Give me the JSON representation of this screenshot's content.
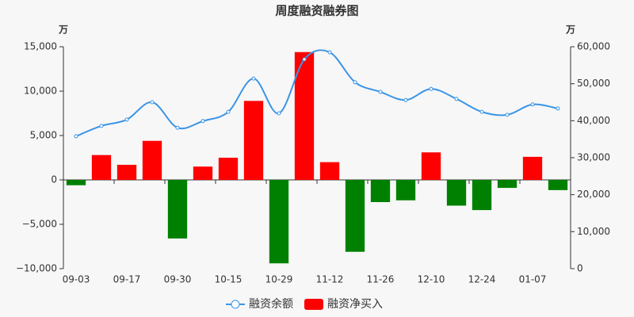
{
  "chart_data": {
    "type": "bar",
    "title": "周度融资融券图",
    "y_unit": "万",
    "y2_unit": "万",
    "categories": [
      "09-03",
      null,
      "09-17",
      null,
      "09-30",
      null,
      "10-15",
      null,
      "10-29",
      null,
      "11-12",
      null,
      "11-26",
      null,
      "12-10",
      null,
      "12-24",
      null,
      "01-07",
      null
    ],
    "series": [
      {
        "name": "融资余额",
        "type": "line",
        "axis": "y2",
        "color": "#3a95e6",
        "values": [
          35800,
          38600,
          40300,
          45000,
          38100,
          39900,
          42400,
          51400,
          42000,
          56600,
          58500,
          50400,
          47800,
          45600,
          48600,
          45900,
          42400,
          41600,
          44400,
          43300
        ]
      },
      {
        "name": "融资净买入",
        "type": "bar",
        "color": "#ff0000",
        "negative_color": "#008000",
        "values": [
          -600,
          2800,
          1700,
          4400,
          -6600,
          1500,
          2500,
          8900,
          -9400,
          14400,
          2000,
          -8100,
          -2500,
          -2300,
          3100,
          -2900,
          -3400,
          -900,
          2600,
          -1150
        ]
      }
    ],
    "ylim": [
      -10000,
      15000
    ],
    "yticks": [
      {
        "value": -10000,
        "label": "−10,000"
      },
      {
        "value": -5000,
        "label": "−5,000"
      },
      0,
      {
        "value": 5000,
        "label": "5,000"
      },
      {
        "value": 10000,
        "label": "10,000"
      },
      {
        "value": 15000,
        "label": "15,000"
      }
    ],
    "y2lim": [
      0,
      60000
    ],
    "y2ticks": [
      0,
      {
        "value": 10000,
        "label": "10,000"
      },
      {
        "value": 20000,
        "label": "20,000"
      },
      {
        "value": 30000,
        "label": "30,000"
      },
      {
        "value": 40000,
        "label": "40,000"
      },
      {
        "value": 50000,
        "label": "50,000"
      },
      {
        "value": 60000,
        "label": "60,000"
      }
    ],
    "legend": "bottom"
  }
}
